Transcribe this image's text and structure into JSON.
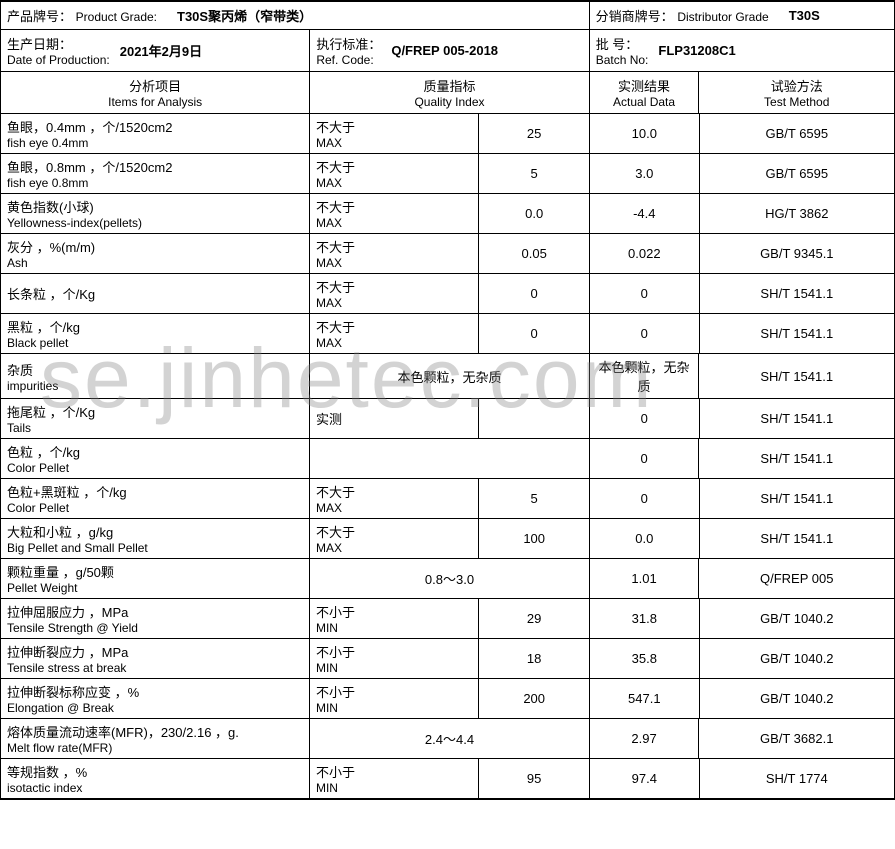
{
  "watermark": "se.jinhetec.com",
  "header": {
    "productGrade": {
      "label_cn": "产品牌号：",
      "label_en": "Product Grade:",
      "value": "T30S聚丙烯（窄带类）"
    },
    "distributorGrade": {
      "label_cn": "分销商牌号：",
      "label_en": "Distributor Grade",
      "value": "T30S"
    },
    "productionDate": {
      "label_cn": "生产日期：",
      "label_en": "Date of Production:",
      "value": "2021年2月9日"
    },
    "refCode": {
      "label_cn": "执行标准：",
      "label_en": "Ref. Code:",
      "value": "Q/FREP 005-2018"
    },
    "batchNo": {
      "label_cn": "批  号：",
      "label_en": "Batch No:",
      "value": "FLP31208C1"
    }
  },
  "columns": {
    "items": {
      "cn": "分析项目",
      "en": "Items for Analysis"
    },
    "qualityIndex": {
      "cn": "质量指标",
      "en": "Quality Index"
    },
    "actualData": {
      "cn": "实测结果",
      "en": "Actual Data"
    },
    "testMethod": {
      "cn": "试验方法",
      "en": "Test Method"
    }
  },
  "qiLabels": {
    "max_cn": "不大于",
    "max_en": "MAX",
    "min_cn": "不小于",
    "min_en": "MIN",
    "actual_cn": "实测"
  },
  "rows": [
    {
      "item_cn": "鱼眼，0.4mm ，个/1520cm2",
      "item_en": "fish eye 0.4mm",
      "qi_type": "max",
      "qi_value": "25",
      "actual": "10.0",
      "method": "GB/T 6595"
    },
    {
      "item_cn": "鱼眼，0.8mm ，个/1520cm2",
      "item_en": "fish eye 0.8mm",
      "qi_type": "max",
      "qi_value": "5",
      "actual": "3.0",
      "method": "GB/T 6595"
    },
    {
      "item_cn": "黄色指数(小球)",
      "item_en": "Yellowness‑index(pellets)",
      "qi_type": "max",
      "qi_value": "0.0",
      "actual": "-4.4",
      "method": "HG/T 3862"
    },
    {
      "item_cn": "灰分 ，%(m/m)",
      "item_en": "Ash",
      "qi_type": "max",
      "qi_value": "0.05",
      "actual": "0.022",
      "method": "GB/T 9345.1"
    },
    {
      "item_cn": "长条粒 ，个/Kg",
      "item_en": "",
      "qi_type": "max",
      "qi_value": "0",
      "actual": "0",
      "method": "SH/T 1541.1"
    },
    {
      "item_cn": "黑粒 ，个/kg",
      "item_en": "Black pellet",
      "qi_type": "max",
      "qi_value": "0",
      "actual": "0",
      "method": "SH/T 1541.1"
    },
    {
      "item_cn": "杂质",
      "item_en": "impurities",
      "qi_type": "merged",
      "qi_merged": "本色颗粒，无杂质",
      "actual": "本色颗粒，无杂质",
      "method": "SH/T 1541.1"
    },
    {
      "item_cn": "拖尾粒 ，个/Kg",
      "item_en": "Tails",
      "qi_type": "actual",
      "qi_value": "",
      "actual": "0",
      "method": "SH/T 1541.1"
    },
    {
      "item_cn": "色粒 ，个/kg",
      "item_en": "Color Pellet",
      "qi_type": "none",
      "qi_value": "",
      "actual": "0",
      "method": "SH/T 1541.1"
    },
    {
      "item_cn": "色粒+黑斑粒 ，个/kg",
      "item_en": "Color Pellet",
      "qi_type": "max",
      "qi_value": "5",
      "actual": "0",
      "method": "SH/T 1541.1"
    },
    {
      "item_cn": "大粒和小粒 ，g/kg",
      "item_en": "Big Pellet  and Small Pellet",
      "qi_type": "max",
      "qi_value": "100",
      "actual": "0.0",
      "method": "SH/T 1541.1"
    },
    {
      "item_cn": "颗粒重量 ，g/50颗",
      "item_en": "Pellet Weight",
      "qi_type": "range",
      "qi_value": "0.8～3.0",
      "actual": "1.01",
      "method": "Q/FREP 005"
    },
    {
      "item_cn": "拉伸屈服应力 ，MPa",
      "item_en": "Tensile Strength @ Yield",
      "qi_type": "min",
      "qi_value": "29",
      "actual": "31.8",
      "method": "GB/T 1040.2"
    },
    {
      "item_cn": "拉伸断裂应力 ，MPa",
      "item_en": "Tensile stress at break",
      "qi_type": "min",
      "qi_value": "18",
      "actual": "35.8",
      "method": "GB/T 1040.2"
    },
    {
      "item_cn": "拉伸断裂标称应变 ，%",
      "item_en": "Elongation @ Break",
      "qi_type": "min",
      "qi_value": "200",
      "actual": "547.1",
      "method": "GB/T 1040.2"
    },
    {
      "item_cn": "熔体质量流动速率(MFR)，230/2.16 ，g.",
      "item_en": "Melt flow rate(MFR)",
      "qi_type": "range",
      "qi_value": "2.4～4.4",
      "actual": "2.97",
      "method": "GB/T 3682.1"
    },
    {
      "item_cn": "等规指数 ，%",
      "item_en": "isotactic index",
      "qi_type": "min",
      "qi_value": "95",
      "actual": "97.4",
      "method": "SH/T 1774"
    }
  ]
}
